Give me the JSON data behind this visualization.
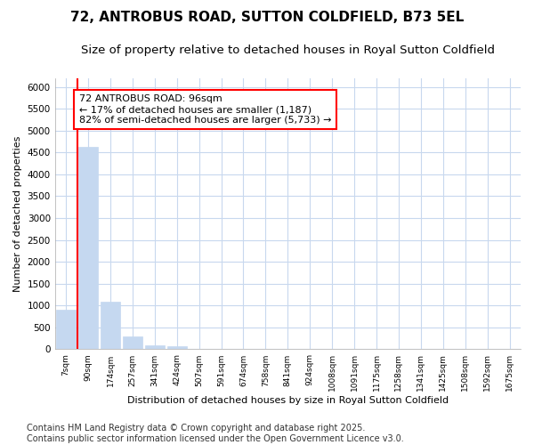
{
  "title": "72, ANTROBUS ROAD, SUTTON COLDFIELD, B73 5EL",
  "subtitle": "Size of property relative to detached houses in Royal Sutton Coldfield",
  "xlabel": "Distribution of detached houses by size in Royal Sutton Coldfield",
  "ylabel": "Number of detached properties",
  "bar_color": "#c5d8f0",
  "bar_edge_color": "#c5d8f0",
  "categories": [
    "7sqm",
    "90sqm",
    "174sqm",
    "257sqm",
    "341sqm",
    "424sqm",
    "507sqm",
    "591sqm",
    "674sqm",
    "758sqm",
    "841sqm",
    "924sqm",
    "1008sqm",
    "1091sqm",
    "1175sqm",
    "1258sqm",
    "1341sqm",
    "1425sqm",
    "1508sqm",
    "1592sqm",
    "1675sqm"
  ],
  "values": [
    900,
    4620,
    1090,
    300,
    90,
    65,
    0,
    0,
    0,
    0,
    0,
    0,
    0,
    0,
    0,
    0,
    0,
    0,
    0,
    0,
    0
  ],
  "ylim": [
    0,
    6200
  ],
  "yticks": [
    0,
    500,
    1000,
    1500,
    2000,
    2500,
    3000,
    3500,
    4000,
    4500,
    5000,
    5500,
    6000
  ],
  "red_line_x": 0.5,
  "annotation_text": "72 ANTROBUS ROAD: 96sqm\n← 17% of detached houses are smaller (1,187)\n82% of semi-detached houses are larger (5,733) →",
  "footnote": "Contains HM Land Registry data © Crown copyright and database right 2025.\nContains public sector information licensed under the Open Government Licence v3.0.",
  "bg_color": "#ffffff",
  "grid_color": "#c8d8ee",
  "title_fontsize": 11,
  "subtitle_fontsize": 9.5,
  "annotation_fontsize": 8,
  "footnote_fontsize": 7,
  "ylabel_fontsize": 8,
  "xlabel_fontsize": 8
}
